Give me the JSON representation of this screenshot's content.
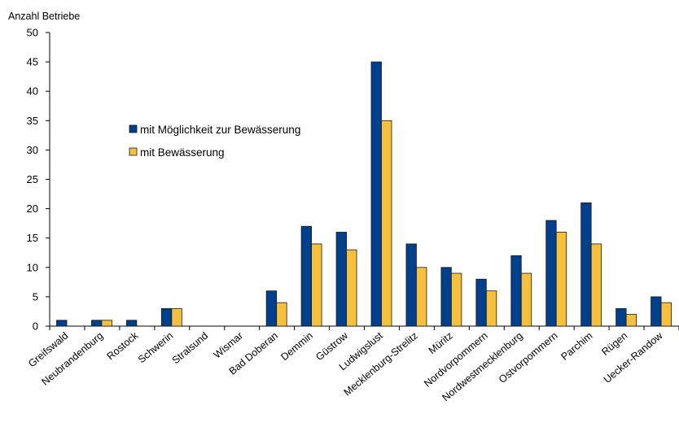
{
  "chart_data": {
    "type": "bar",
    "title": "",
    "ylabel": "Anzahl Betriebe",
    "xlabel": "",
    "ylim": [
      0,
      50
    ],
    "yticks": [
      0,
      5,
      10,
      15,
      20,
      25,
      30,
      35,
      40,
      45,
      50
    ],
    "grid": false,
    "legend_position": "upper-center",
    "categories": [
      "Greifswald",
      "Neubrandenburg",
      "Rostock",
      "Schwerin",
      "Stralsund",
      "Wismar",
      "Bad Doberan",
      "Demmin",
      "Güstrow",
      "Ludwigslust",
      "Mecklenburg-Strelitz",
      "Müritz",
      "Nordvorpommern",
      "Nordwestmecklenburg",
      "Ostvorpommern",
      "Parchim",
      "Rügen",
      "Uecker-Randow"
    ],
    "series": [
      {
        "name": "mit Möglichkeit zur Bewässerung",
        "color": "#003f8c",
        "values": [
          1,
          1,
          1,
          3,
          0,
          0,
          6,
          17,
          16,
          45,
          14,
          10,
          8,
          12,
          18,
          21,
          3,
          5
        ]
      },
      {
        "name": "mit Bewässerung",
        "color": "#f5c03e",
        "values": [
          0,
          1,
          0,
          3,
          0,
          0,
          4,
          14,
          13,
          35,
          10,
          9,
          6,
          9,
          16,
          14,
          2,
          4
        ]
      }
    ]
  }
}
